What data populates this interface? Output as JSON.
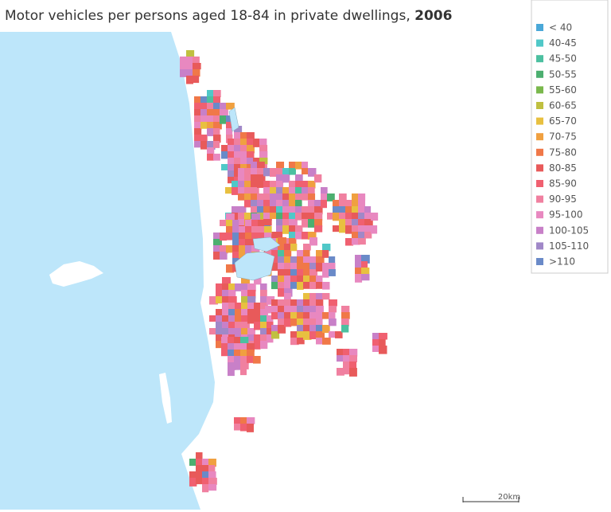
{
  "title_text": "Motor vehicles per persons aged 18-84 in private dwellings,",
  "title_year": "2006",
  "legend": [
    {
      "label": "< 40",
      "color": "#4aa8d8"
    },
    {
      "label": "40-45",
      "color": "#50c8c8"
    },
    {
      "label": "45-50",
      "color": "#4cc0a0"
    },
    {
      "label": "50-55",
      "color": "#4caf70"
    },
    {
      "label": "55-60",
      "color": "#7ab84c"
    },
    {
      "label": "60-65",
      "color": "#c0c040"
    },
    {
      "label": "65-70",
      "color": "#e8c040"
    },
    {
      "label": "70-75",
      "color": "#f0a040"
    },
    {
      "label": "75-80",
      "color": "#f07848"
    },
    {
      "label": "80-85",
      "color": "#e85a5a"
    },
    {
      "label": "85-90",
      "color": "#f06070"
    },
    {
      "label": "90-95",
      "color": "#f080a0"
    },
    {
      "label": "95-100",
      "color": "#e888c0"
    },
    {
      "label": "100-105",
      "color": "#c880c8"
    },
    {
      "label": "105-110",
      "color": "#a088c8"
    },
    {
      "label": ">110",
      "color": "#6a8ac8"
    }
  ],
  "scale_label": "20km"
}
